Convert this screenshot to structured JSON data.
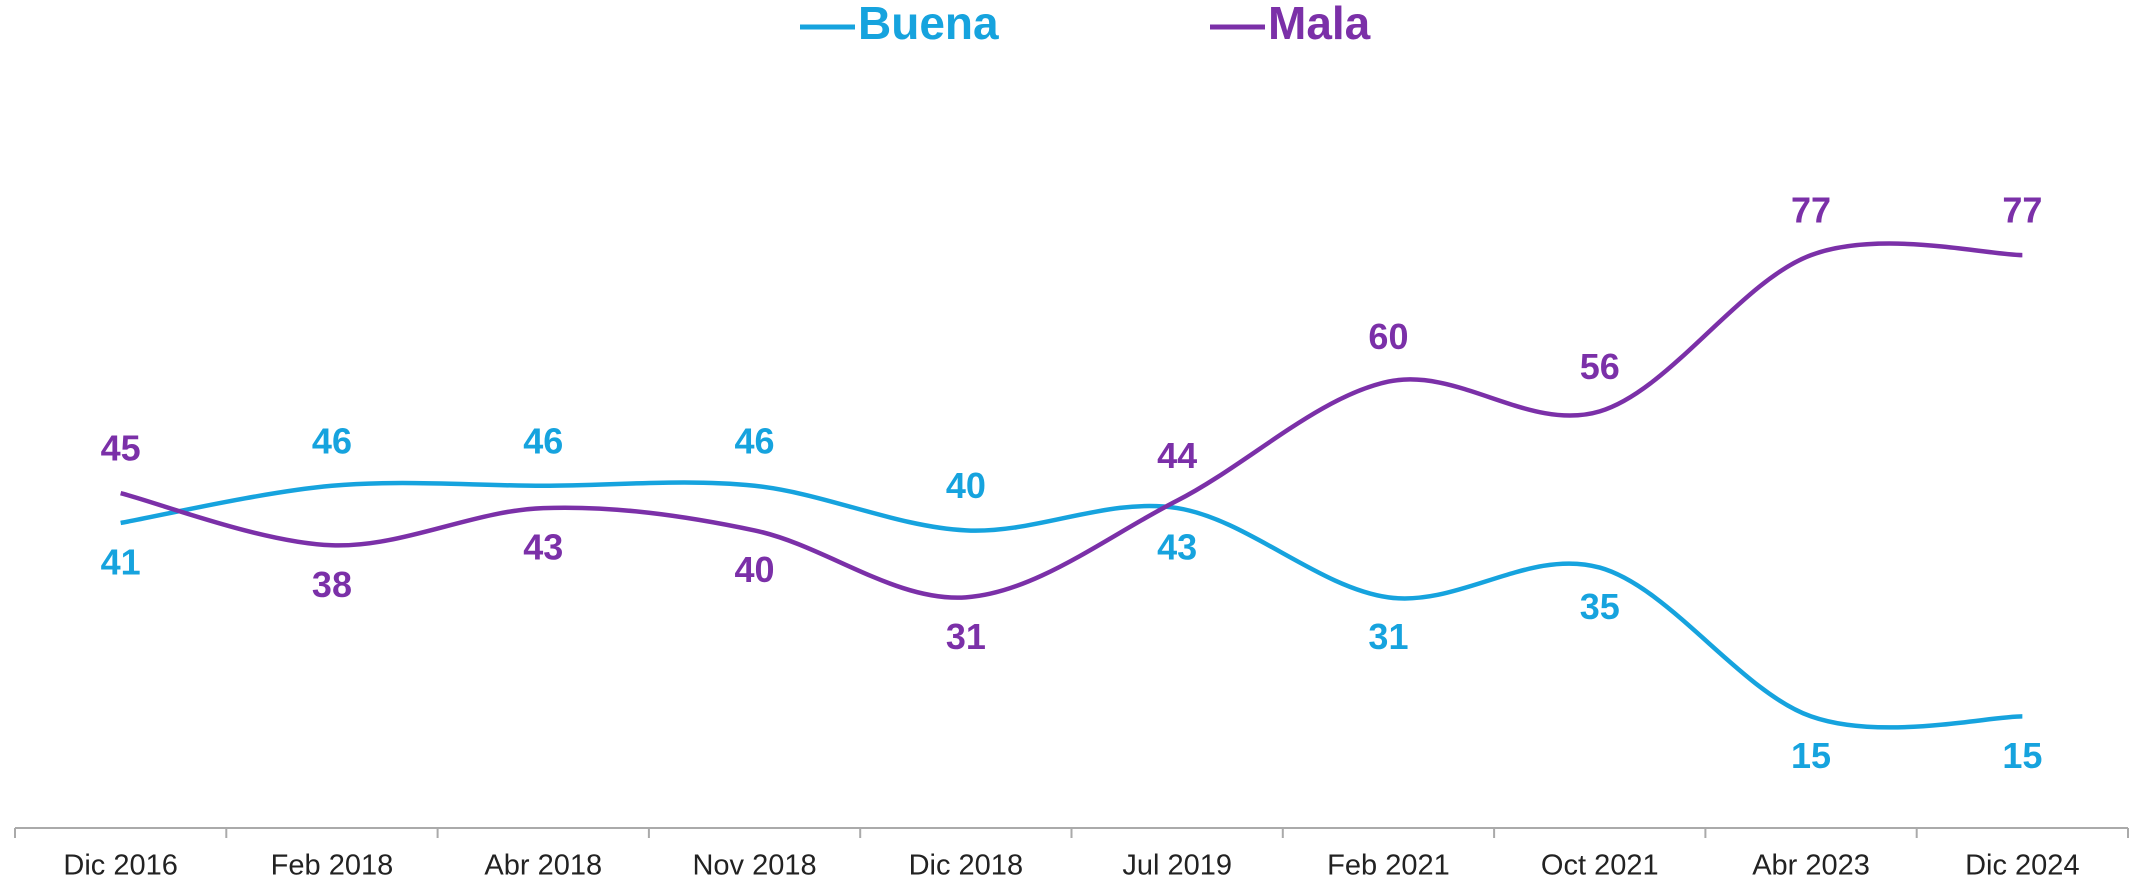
{
  "chart_data": {
    "type": "line",
    "categories": [
      "Dic 2016",
      "Feb 2018",
      "Abr 2018",
      "Nov 2018",
      "Dic 2018",
      "Jul 2019",
      "Feb 2021",
      "Oct 2021",
      "Abr 2023",
      "Dic 2024"
    ],
    "series": [
      {
        "name": "Buena",
        "color": "#16a3de",
        "values": [
          41,
          46,
          46,
          46,
          40,
          43,
          31,
          35,
          15,
          15
        ]
      },
      {
        "name": "Mala",
        "color": "#7b30a8",
        "values": [
          45,
          38,
          43,
          40,
          31,
          44,
          60,
          56,
          77,
          77
        ]
      }
    ],
    "ylim": [
      0,
      100
    ],
    "legend": "top",
    "grid": false
  }
}
